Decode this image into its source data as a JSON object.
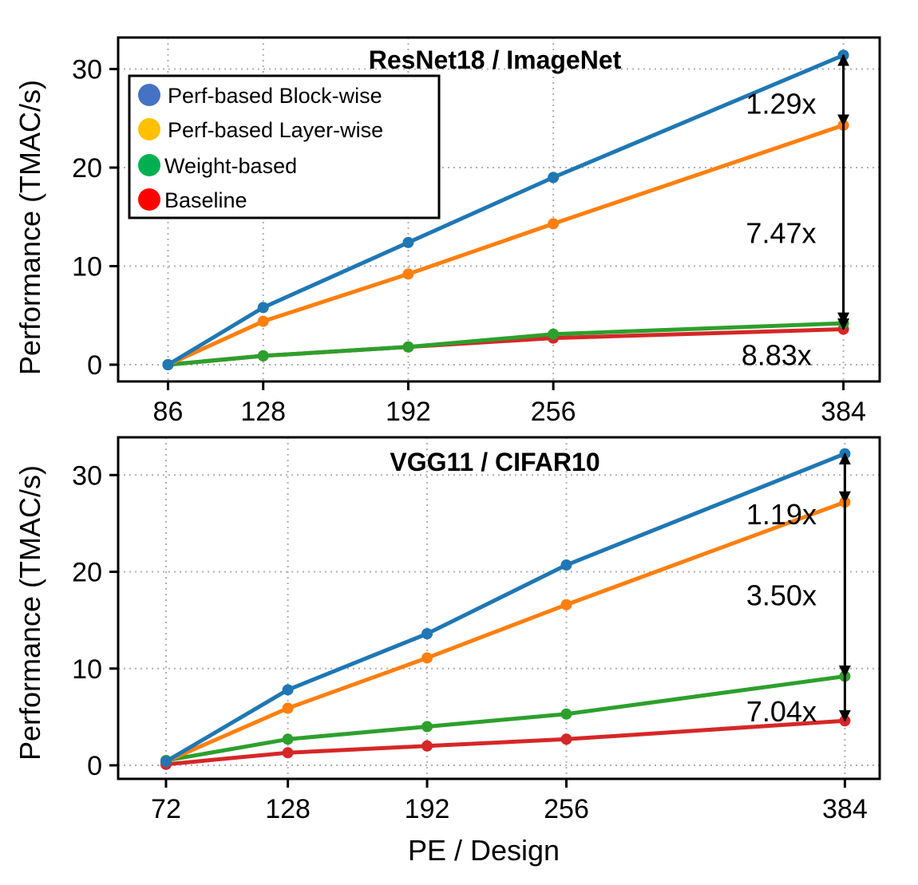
{
  "colors": {
    "block_wise": "#1f77b4",
    "layer_wise": "#ff7f0e",
    "weight_based": "#2ca02c",
    "baseline": "#d62728",
    "legend_block_wise": "#4472c4",
    "legend_layer_wise": "#ffc000",
    "legend_weight_based": "#00b050",
    "legend_baseline": "#ff0000"
  },
  "legend": {
    "items": [
      {
        "label": "Perf-based Block-wise",
        "color_key": "legend_block_wise"
      },
      {
        "label": "Perf-based Layer-wise",
        "color_key": "legend_layer_wise"
      },
      {
        "label": "Weight-based",
        "color_key": "legend_weight_based"
      },
      {
        "label": "Baseline",
        "color_key": "legend_baseline"
      }
    ]
  },
  "chart_data": [
    {
      "type": "line",
      "title": "ResNet18 / ImageNet",
      "xlabel": "",
      "ylabel": "Performance (TMAC/s)",
      "grid": true,
      "legend_position": "top-left",
      "xlim": [
        64,
        400
      ],
      "ylim": [
        -1.7,
        33.2
      ],
      "xticks": [
        86,
        128,
        192,
        256,
        384
      ],
      "xtick_labels": [
        "86",
        "128",
        "192",
        "256",
        "384"
      ],
      "yticks": [
        0,
        10,
        20,
        30
      ],
      "ytick_labels": [
        "0",
        "10",
        "20",
        "30"
      ],
      "x": [
        86,
        128,
        192,
        256,
        384
      ],
      "series": [
        {
          "name": "Perf-based Block-wise",
          "color_key": "block_wise",
          "values": [
            0.0,
            5.8,
            12.4,
            19.0,
            31.4
          ]
        },
        {
          "name": "Perf-based Layer-wise",
          "color_key": "layer_wise",
          "values": [
            0.0,
            4.4,
            9.2,
            14.3,
            24.3
          ]
        },
        {
          "name": "Weight-based",
          "color_key": "weight_based",
          "values": [
            0.0,
            0.9,
            1.8,
            3.1,
            4.2
          ]
        },
        {
          "name": "Baseline",
          "color_key": "baseline",
          "values": [
            0.0,
            0.9,
            1.8,
            2.7,
            3.6
          ]
        }
      ],
      "annotations": [
        {
          "text": "1.29x",
          "x": 372,
          "y": 26.5,
          "anchor": "end"
        },
        {
          "text": "7.47x",
          "x": 372,
          "y": 13.4,
          "anchor": "end"
        },
        {
          "text": "8.83x",
          "x": 370,
          "y": 1.0,
          "anchor": "end"
        }
      ],
      "arrows": [
        {
          "x": 384,
          "y_from": 31.4,
          "y_to": 24.3,
          "double": true
        },
        {
          "x": 384,
          "y_from": 24.3,
          "y_to": 4.2,
          "double": false
        },
        {
          "x": 384,
          "y_from": 31.4,
          "y_to": 3.6,
          "double": false
        }
      ]
    },
    {
      "type": "line",
      "title": "VGG11 / CIFAR10",
      "xlabel": "PE / Design",
      "ylabel": "Performance (TMAC/s)",
      "grid": true,
      "legend_position": "none",
      "xlim": [
        50,
        400
      ],
      "ylim": [
        -1.4,
        33.9
      ],
      "xticks": [
        72,
        128,
        192,
        256,
        384
      ],
      "xtick_labels": [
        "72",
        "128",
        "192",
        "256",
        "384"
      ],
      "yticks": [
        0,
        10,
        20,
        30
      ],
      "ytick_labels": [
        "0",
        "10",
        "20",
        "30"
      ],
      "x": [
        72,
        128,
        192,
        256,
        384
      ],
      "series": [
        {
          "name": "Perf-based Block-wise",
          "color_key": "block_wise",
          "values": [
            0.4,
            7.8,
            13.6,
            20.7,
            32.2
          ]
        },
        {
          "name": "Perf-based Layer-wise",
          "color_key": "layer_wise",
          "values": [
            0.4,
            5.9,
            11.1,
            16.6,
            27.2
          ]
        },
        {
          "name": "Weight-based",
          "color_key": "weight_based",
          "values": [
            0.5,
            2.7,
            4.0,
            5.3,
            9.2
          ]
        },
        {
          "name": "Baseline",
          "color_key": "baseline",
          "values": [
            0.1,
            1.3,
            2.0,
            2.7,
            4.6
          ]
        }
      ],
      "annotations": [
        {
          "text": "1.19x",
          "x": 371,
          "y": 26.0,
          "anchor": "end"
        },
        {
          "text": "3.50x",
          "x": 371,
          "y": 17.6,
          "anchor": "end"
        },
        {
          "text": "7.04x",
          "x": 371,
          "y": 5.6,
          "anchor": "end"
        }
      ],
      "arrows": [
        {
          "x": 384,
          "y_from": 32.2,
          "y_to": 27.2,
          "double": true
        },
        {
          "x": 384,
          "y_from": 27.2,
          "y_to": 9.2,
          "double": false
        },
        {
          "x": 384,
          "y_from": 32.2,
          "y_to": 4.6,
          "double": false
        }
      ]
    }
  ]
}
